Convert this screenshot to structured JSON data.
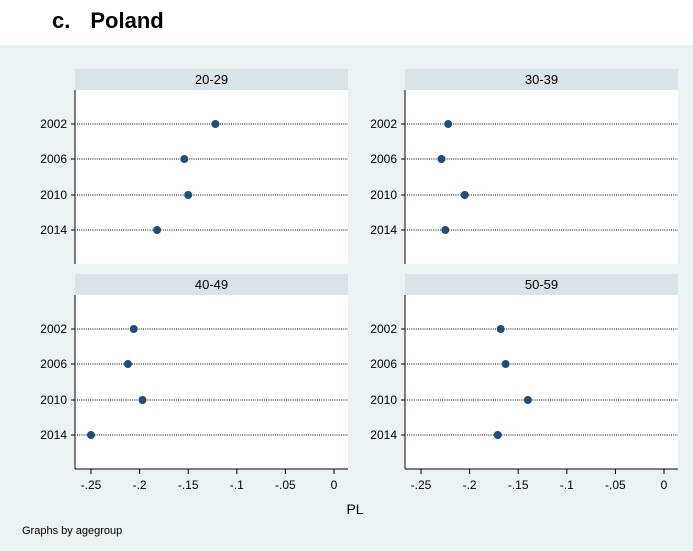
{
  "heading": {
    "label": "c.",
    "title": "Poland"
  },
  "note": "Graphs by agegroup",
  "colors": {
    "background": "#eaf2f3",
    "panel_header": "#d8e4ea",
    "marker": "#1f4e79",
    "frame": "#000000",
    "dots": "#000000"
  },
  "chart_data": {
    "type": "scatter",
    "style": "dot-plot",
    "xlabel": "PL",
    "xlim": [
      -0.25,
      0
    ],
    "xticks": [
      -0.25,
      -0.2,
      -0.15,
      -0.1,
      -0.05,
      0
    ],
    "xtick_labels": [
      "-.25",
      "-.2",
      "-.15",
      "-.1",
      "-.05",
      "0"
    ],
    "categories": [
      "2002",
      "2006",
      "2010",
      "2014"
    ],
    "panels": [
      {
        "name": "20-29",
        "values": [
          -0.122,
          -0.154,
          -0.15,
          -0.182
        ]
      },
      {
        "name": "30-39",
        "values": [
          -0.222,
          -0.229,
          -0.205,
          -0.225
        ]
      },
      {
        "name": "40-49",
        "values": [
          -0.206,
          -0.212,
          -0.197,
          -0.25
        ]
      },
      {
        "name": "50-59",
        "values": [
          -0.168,
          -0.163,
          -0.14,
          -0.171
        ]
      }
    ]
  }
}
